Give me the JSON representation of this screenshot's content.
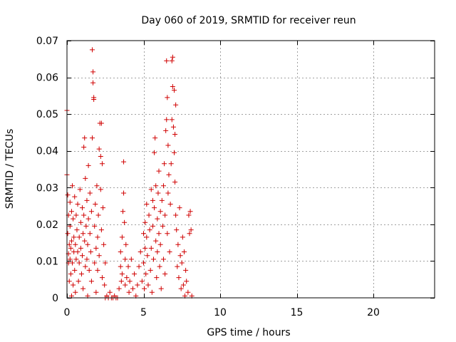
{
  "chart_data": {
    "type": "scatter",
    "title": "Day 060 of 2019, SRMTID for receiver reun",
    "xlabel": "GPS time / hours",
    "ylabel": "SRMTID / TECUs",
    "xlim": [
      0,
      24
    ],
    "ylim": [
      0,
      0.07
    ],
    "xticks": [
      0,
      5,
      10,
      15,
      20
    ],
    "yticks": [
      0,
      0.01,
      0.02,
      0.03,
      0.04,
      0.05,
      0.06,
      0.07
    ],
    "ytick_labels": [
      "0",
      "0.01",
      "0.02",
      "0.03",
      "0.04",
      "0.05",
      "0.06",
      "0.07"
    ],
    "grid": true,
    "marker": "+",
    "color": "#d00000",
    "series": [
      {
        "points": [
          [
            0.0,
            0.0335
          ],
          [
            0.0,
            0.051
          ],
          [
            0.05,
            0.028
          ],
          [
            0.05,
            0.0175
          ],
          [
            0.1,
            0.0225
          ],
          [
            0.1,
            0.012
          ],
          [
            0.1,
            0.0095
          ],
          [
            0.15,
            0.0145
          ],
          [
            0.15,
            0.0045
          ],
          [
            0.2,
            0.026
          ],
          [
            0.2,
            0.0195
          ],
          [
            0.2,
            0.0105
          ],
          [
            0.25,
            0.0135
          ],
          [
            0.25,
            0.0065
          ],
          [
            0.3,
            0.0235
          ],
          [
            0.3,
            0.0155
          ],
          [
            0.3,
            0.0005
          ],
          [
            0.35,
            0.0305
          ],
          [
            0.35,
            0.0095
          ],
          [
            0.4,
            0.0215
          ],
          [
            0.4,
            0.0035
          ],
          [
            0.45,
            0.0165
          ],
          [
            0.45,
            0.0125
          ],
          [
            0.5,
            0.0275
          ],
          [
            0.5,
            0.0075
          ],
          [
            0.55,
            0.0145
          ],
          [
            0.55,
            0.0015
          ],
          [
            0.6,
            0.0225
          ],
          [
            0.6,
            0.0105
          ],
          [
            0.65,
            0.0185
          ],
          [
            0.7,
            0.0255
          ],
          [
            0.7,
            0.0125
          ],
          [
            0.75,
            0.0045
          ],
          [
            0.8,
            0.0165
          ],
          [
            0.8,
            0.0095
          ],
          [
            0.85,
            0.0295
          ],
          [
            0.9,
            0.0205
          ],
          [
            0.9,
            0.0135
          ],
          [
            0.95,
            0.0065
          ],
          [
            1.0,
            0.0245
          ],
          [
            1.0,
            0.0115
          ],
          [
            1.05,
            0.0175
          ],
          [
            1.05,
            0.0025
          ],
          [
            1.1,
            0.041
          ],
          [
            1.1,
            0.0225
          ],
          [
            1.15,
            0.0435
          ],
          [
            1.15,
            0.0155
          ],
          [
            1.2,
            0.0085
          ],
          [
            1.2,
            0.0325
          ],
          [
            1.25,
            0.0195
          ],
          [
            1.3,
            0.0265
          ],
          [
            1.3,
            0.0105
          ],
          [
            1.35,
            0.0145
          ],
          [
            1.35,
            0.0005
          ],
          [
            1.4,
            0.036
          ],
          [
            1.4,
            0.0215
          ],
          [
            1.45,
            0.0075
          ],
          [
            1.5,
            0.0285
          ],
          [
            1.5,
            0.0175
          ],
          [
            1.55,
            0.0125
          ],
          [
            1.6,
            0.0235
          ],
          [
            1.6,
            0.0045
          ],
          [
            1.65,
            0.0675
          ],
          [
            1.65,
            0.0435
          ],
          [
            1.7,
            0.0615
          ],
          [
            1.7,
            0.0585
          ],
          [
            1.75,
            0.0545
          ],
          [
            1.75,
            0.054
          ],
          [
            1.8,
            0.0195
          ],
          [
            1.8,
            0.0095
          ],
          [
            1.85,
            0.0255
          ],
          [
            1.9,
            0.0135
          ],
          [
            1.9,
            0.0015
          ],
          [
            1.95,
            0.0305
          ],
          [
            2.0,
            0.0165
          ],
          [
            2.0,
            0.0075
          ],
          [
            2.05,
            0.0225
          ],
          [
            2.1,
            0.0405
          ],
          [
            2.1,
            0.0115
          ],
          [
            2.15,
            0.0475
          ],
          [
            2.2,
            0.0385
          ],
          [
            2.2,
            0.0295
          ],
          [
            2.25,
            0.0475
          ],
          [
            2.25,
            0.0185
          ],
          [
            2.3,
            0.0365
          ],
          [
            2.3,
            0.0055
          ],
          [
            2.35,
            0.0245
          ],
          [
            2.4,
            0.0145
          ],
          [
            2.45,
            0.0035
          ],
          [
            2.5,
            0.0095
          ],
          [
            2.5,
            0.0
          ],
          [
            2.6,
            0.0005
          ],
          [
            2.7,
            0.0
          ],
          [
            2.8,
            0.0015
          ],
          [
            2.9,
            0.0
          ],
          [
            3.0,
            0.0
          ],
          [
            3.1,
            0.0005
          ],
          [
            3.2,
            0.0
          ],
          [
            3.3,
            0.0
          ],
          [
            3.4,
            0.0025
          ],
          [
            3.5,
            0.0085
          ],
          [
            3.5,
            0.0125
          ],
          [
            3.55,
            0.0045
          ],
          [
            3.6,
            0.0165
          ],
          [
            3.6,
            0.0065
          ],
          [
            3.65,
            0.0235
          ],
          [
            3.7,
            0.037
          ],
          [
            3.7,
            0.0285
          ],
          [
            3.75,
            0.0205
          ],
          [
            3.8,
            0.0105
          ],
          [
            3.8,
            0.0035
          ],
          [
            3.85,
            0.0145
          ],
          [
            3.9,
            0.0055
          ],
          [
            4.0,
            0.0085
          ],
          [
            4.05,
            0.0015
          ],
          [
            4.1,
            0.0045
          ],
          [
            4.2,
            0.0105
          ],
          [
            4.3,
            0.0025
          ],
          [
            4.4,
            0.0065
          ],
          [
            4.5,
            0.0005
          ],
          [
            4.6,
            0.0035
          ],
          [
            4.7,
            0.0085
          ],
          [
            4.8,
            0.0125
          ],
          [
            4.9,
            0.0045
          ],
          [
            5.0,
            0.0175
          ],
          [
            5.0,
            0.0095
          ],
          [
            5.05,
            0.0025
          ],
          [
            5.1,
            0.0205
          ],
          [
            5.1,
            0.0135
          ],
          [
            5.15,
            0.0065
          ],
          [
            5.2,
            0.0255
          ],
          [
            5.2,
            0.0165
          ],
          [
            5.25,
            0.0115
          ],
          [
            5.3,
            0.0035
          ],
          [
            5.35,
            0.0225
          ],
          [
            5.4,
            0.0185
          ],
          [
            5.45,
            0.0075
          ],
          [
            5.5,
            0.0295
          ],
          [
            5.5,
            0.0135
          ],
          [
            5.55,
            0.0015
          ],
          [
            5.6,
            0.0265
          ],
          [
            5.6,
            0.0195
          ],
          [
            5.65,
            0.0105
          ],
          [
            5.7,
            0.0395
          ],
          [
            5.7,
            0.0245
          ],
          [
            5.75,
            0.0435
          ],
          [
            5.8,
            0.0305
          ],
          [
            5.8,
            0.0155
          ],
          [
            5.85,
            0.0055
          ],
          [
            5.9,
            0.0215
          ],
          [
            5.9,
            0.0125
          ],
          [
            5.95,
            0.0285
          ],
          [
            6.0,
            0.0345
          ],
          [
            6.0,
            0.0175
          ],
          [
            6.05,
            0.0085
          ],
          [
            6.1,
            0.0235
          ],
          [
            6.1,
            0.0145
          ],
          [
            6.15,
            0.0025
          ],
          [
            6.2,
            0.0265
          ],
          [
            6.25,
            0.0195
          ],
          [
            6.3,
            0.0305
          ],
          [
            6.3,
            0.0105
          ],
          [
            6.35,
            0.0365
          ],
          [
            6.4,
            0.0225
          ],
          [
            6.4,
            0.0065
          ],
          [
            6.45,
            0.0455
          ],
          [
            6.5,
            0.0645
          ],
          [
            6.5,
            0.0485
          ],
          [
            6.55,
            0.0545
          ],
          [
            6.55,
            0.0175
          ],
          [
            6.6,
            0.0415
          ],
          [
            6.6,
            0.0285
          ],
          [
            6.65,
            0.0335
          ],
          [
            6.7,
            0.0125
          ],
          [
            6.75,
            0.0255
          ],
          [
            6.8,
            0.0365
          ],
          [
            6.85,
            0.0645
          ],
          [
            6.85,
            0.0485
          ],
          [
            6.9,
            0.0655
          ],
          [
            6.9,
            0.0575
          ],
          [
            6.95,
            0.0465
          ],
          [
            7.0,
            0.0565
          ],
          [
            7.0,
            0.0395
          ],
          [
            7.05,
            0.0445
          ],
          [
            7.05,
            0.0315
          ],
          [
            7.1,
            0.0525
          ],
          [
            7.1,
            0.0225
          ],
          [
            7.15,
            0.0185
          ],
          [
            7.2,
            0.0085
          ],
          [
            7.25,
            0.0145
          ],
          [
            7.3,
            0.0055
          ],
          [
            7.35,
            0.0245
          ],
          [
            7.4,
            0.0115
          ],
          [
            7.45,
            0.0025
          ],
          [
            7.5,
            0.0095
          ],
          [
            7.55,
            0.0165
          ],
          [
            7.6,
            0.0035
          ],
          [
            7.65,
            0.0125
          ],
          [
            7.7,
            0.0005
          ],
          [
            7.75,
            0.0075
          ],
          [
            7.8,
            0.0045
          ],
          [
            7.9,
            0.0015
          ],
          [
            7.95,
            0.0225
          ],
          [
            8.0,
            0.0175
          ],
          [
            8.05,
            0.0235
          ],
          [
            8.1,
            0.0185
          ],
          [
            8.15,
            0.0005
          ]
        ]
      }
    ]
  }
}
